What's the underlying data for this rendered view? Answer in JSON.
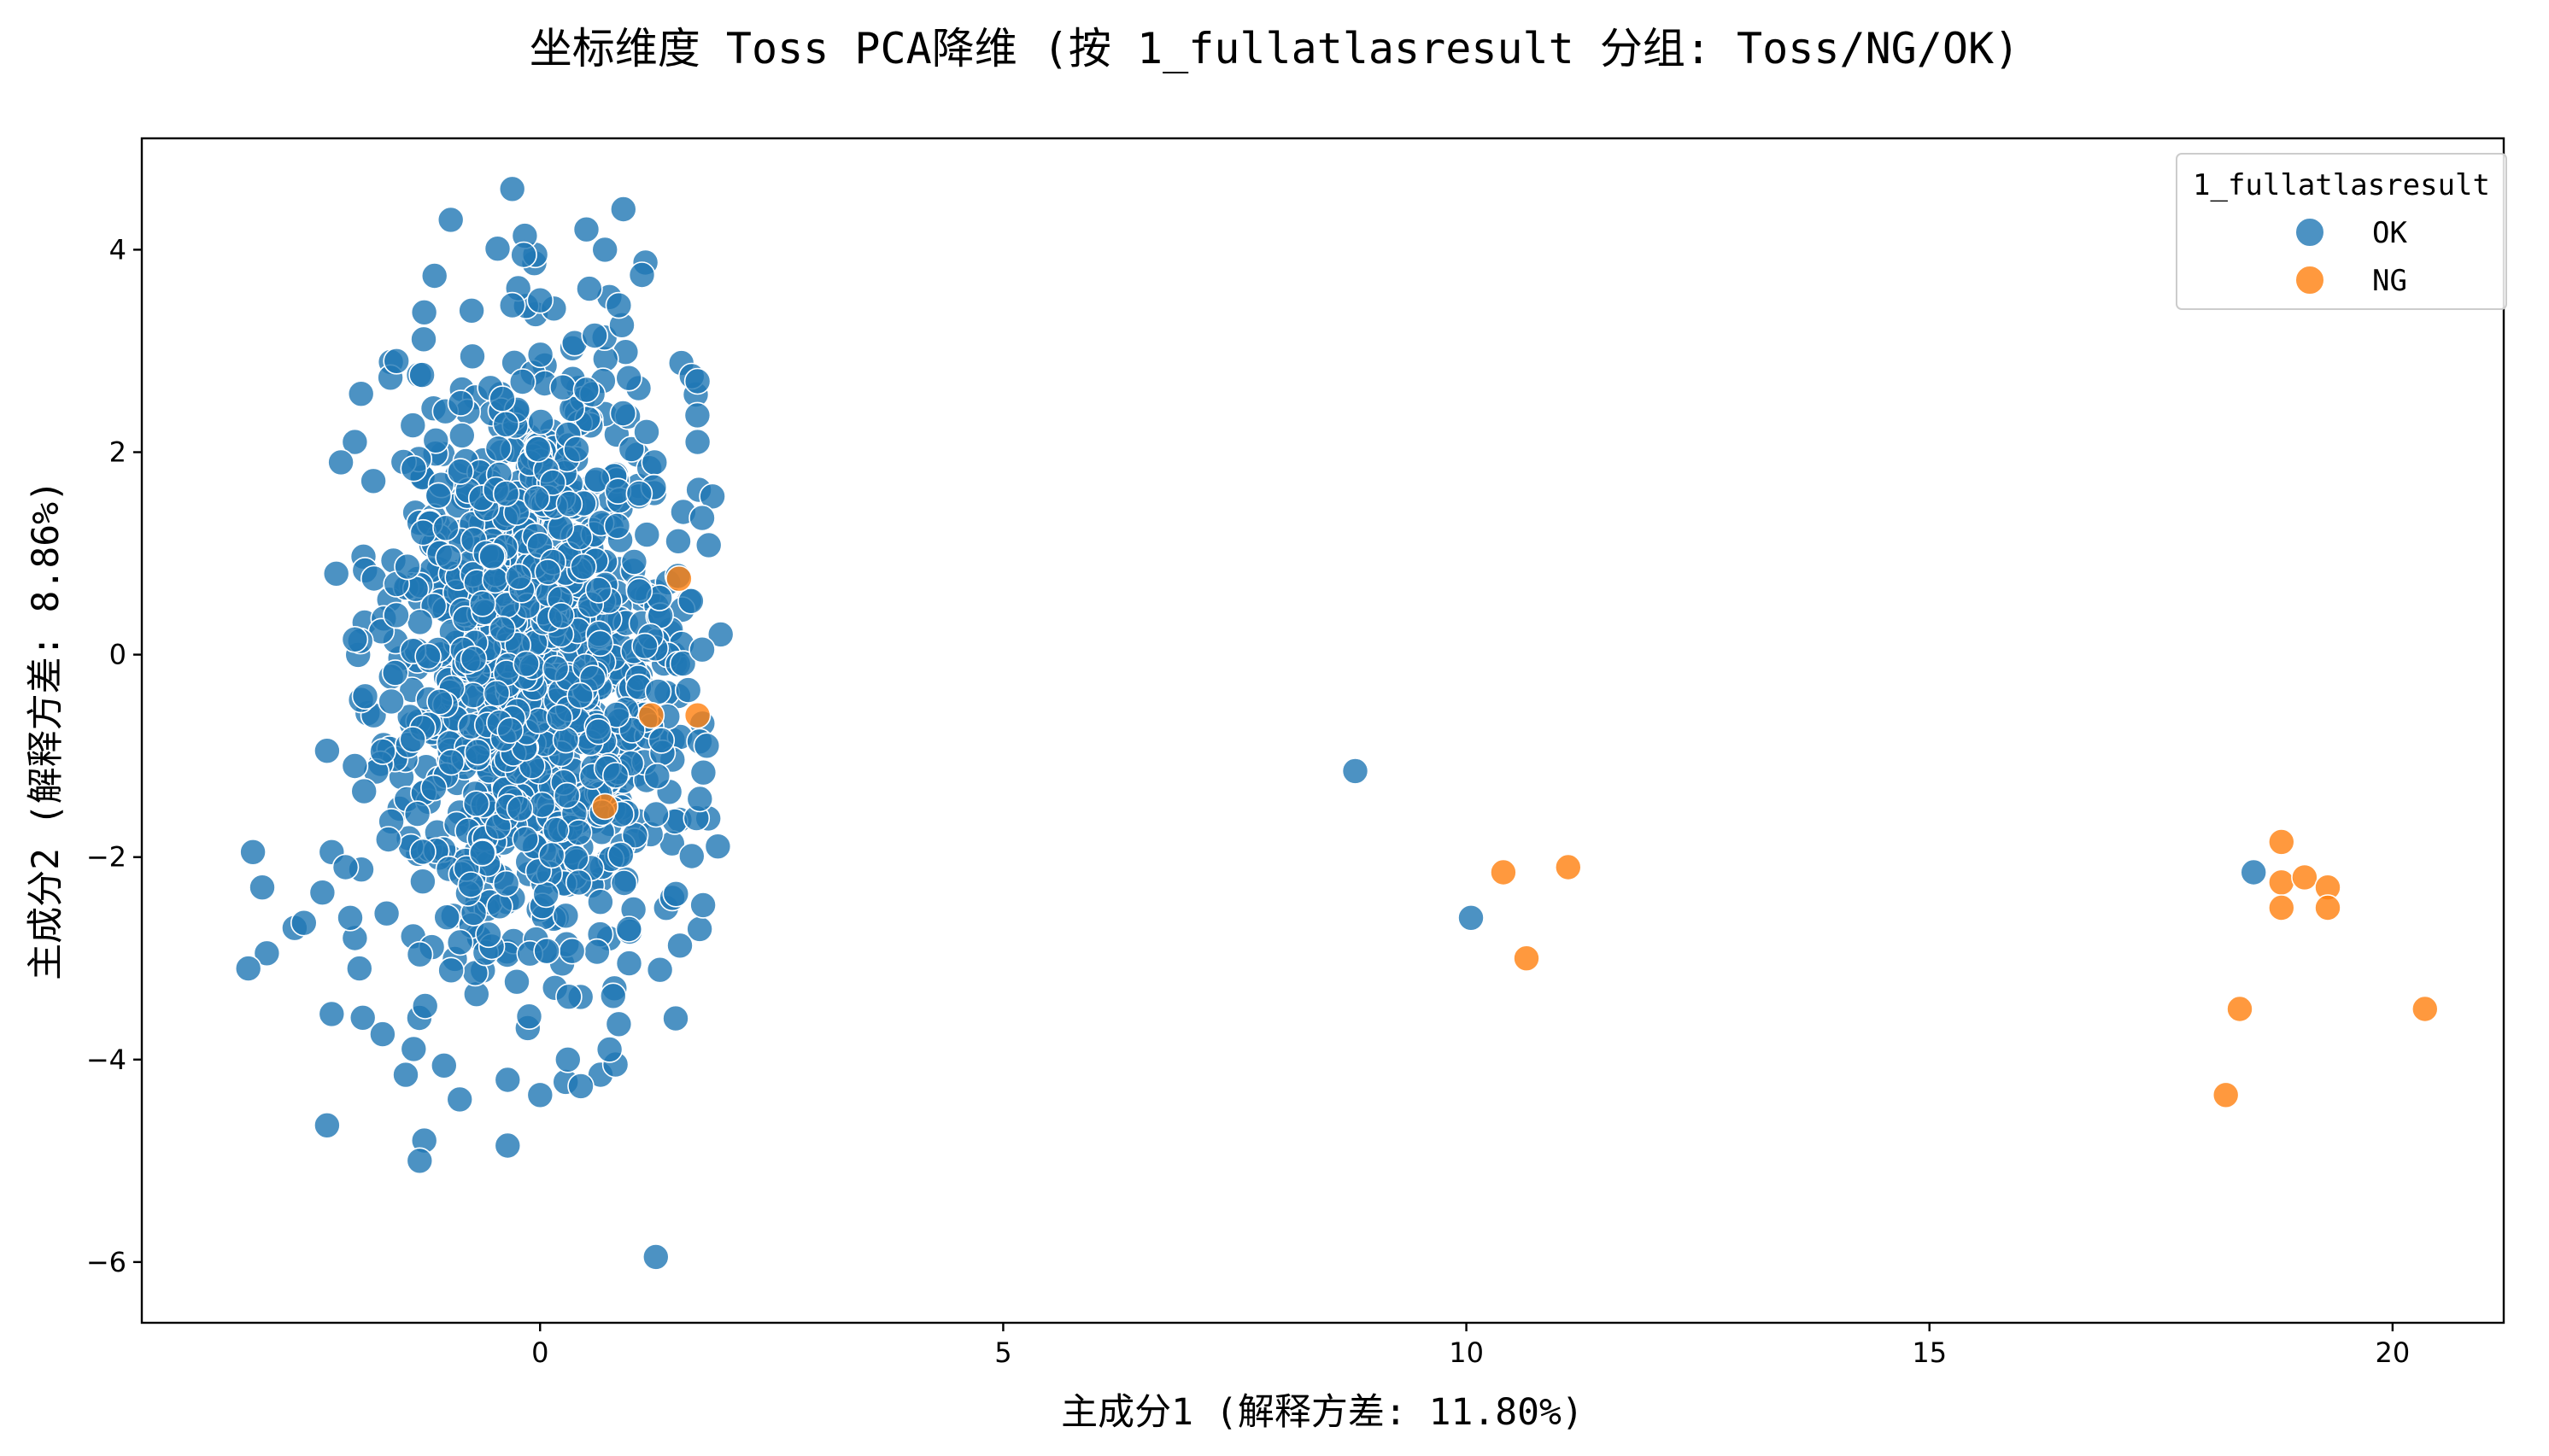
{
  "chart_data": {
    "type": "scatter",
    "title": "坐标维度 Toss PCA降维 (按 1_fullatlasresult 分组: Toss/NG/OK)",
    "xlabel": "主成分1 (解释方差: 11.80%)",
    "ylabel": "主成分2 (解释方差: 8.86%)",
    "xlim": [
      -4.3,
      21.2
    ],
    "ylim": [
      -6.6,
      5.1
    ],
    "xticks": [
      0,
      5,
      10,
      15,
      20
    ],
    "yticks": [
      -6,
      -4,
      -2,
      0,
      2,
      4
    ],
    "legend": {
      "title": "1_fullatlasresult",
      "position": "top-right",
      "entries": [
        "OK",
        "NG"
      ]
    },
    "grid": false,
    "series": [
      {
        "name": "OK",
        "color": "#1f77b4",
        "cluster": {
          "center": [
            -0.05,
            -0.05
          ],
          "sd": [
            0.85,
            1.55
          ],
          "count": 1150,
          "range_x": [
            -2.0,
            2.0
          ],
          "range_y": [
            -4.6,
            4.3
          ]
        },
        "points": [
          [
            -0.3,
            4.6
          ],
          [
            0.9,
            4.4
          ],
          [
            0.5,
            4.2
          ],
          [
            0.7,
            4.0
          ],
          [
            1.1,
            3.75
          ],
          [
            -1.55,
            2.9
          ],
          [
            -2.0,
            2.1
          ],
          [
            -2.15,
            1.9
          ],
          [
            -2.2,
            0.8
          ],
          [
            -2.0,
            0.15
          ],
          [
            1.95,
            0.2
          ],
          [
            1.8,
            -0.9
          ],
          [
            -2.0,
            -1.1
          ],
          [
            -1.9,
            -1.35
          ],
          [
            -3.1,
            -1.95
          ],
          [
            -3.0,
            -2.3
          ],
          [
            -2.35,
            -2.35
          ],
          [
            -2.25,
            -1.95
          ],
          [
            -2.1,
            -2.1
          ],
          [
            -2.65,
            -2.7
          ],
          [
            -2.55,
            -2.65
          ],
          [
            -2.95,
            -2.95
          ],
          [
            -3.15,
            -3.1
          ],
          [
            -2.0,
            -2.8
          ],
          [
            -2.05,
            -2.6
          ],
          [
            -1.95,
            -3.1
          ],
          [
            -2.25,
            -3.55
          ],
          [
            -1.7,
            -3.75
          ],
          [
            -2.3,
            -4.65
          ],
          [
            -1.45,
            -4.15
          ],
          [
            -1.25,
            -4.8
          ],
          [
            -1.3,
            -5.0
          ],
          [
            -0.35,
            -4.85
          ],
          [
            -0.35,
            -4.2
          ],
          [
            0.0,
            -4.35
          ],
          [
            0.3,
            -4.0
          ],
          [
            0.85,
            -3.65
          ],
          [
            0.75,
            -3.9
          ],
          [
            1.25,
            -5.95
          ],
          [
            -2.3,
            -0.95
          ],
          [
            1.75,
            0.05
          ],
          [
            1.6,
            -0.35
          ],
          [
            1.75,
            1.35
          ],
          [
            1.7,
            2.1
          ],
          [
            1.7,
            2.7
          ],
          [
            1.15,
            2.2
          ],
          [
            0.85,
            3.45
          ],
          [
            0.0,
            3.5
          ],
          [
            -0.3,
            3.45
          ],
          [
            8.8,
            -1.15
          ],
          [
            10.05,
            -2.6
          ],
          [
            18.5,
            -2.15
          ]
        ]
      },
      {
        "name": "NG",
        "color": "#ff7f0e",
        "points": [
          [
            1.5,
            0.75
          ],
          [
            1.2,
            -0.6
          ],
          [
            1.7,
            -0.6
          ],
          [
            0.7,
            -1.5
          ],
          [
            10.4,
            -2.15
          ],
          [
            11.1,
            -2.1
          ],
          [
            10.65,
            -3.0
          ],
          [
            18.8,
            -1.85
          ],
          [
            18.8,
            -2.25
          ],
          [
            19.05,
            -2.2
          ],
          [
            19.3,
            -2.3
          ],
          [
            18.8,
            -2.5
          ],
          [
            19.3,
            -2.5
          ],
          [
            18.35,
            -3.5
          ],
          [
            20.35,
            -3.5
          ],
          [
            18.2,
            -4.35
          ]
        ]
      }
    ]
  }
}
